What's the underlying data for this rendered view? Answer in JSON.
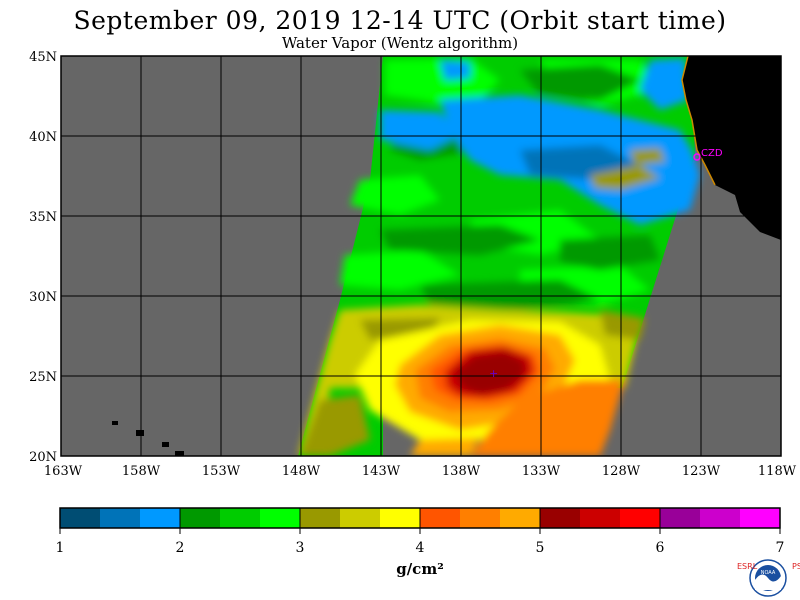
{
  "header": {
    "title": "September 09, 2019  12-14 UTC  (Orbit start time)",
    "subtitle": "Water Vapor (Wentz algorithm)"
  },
  "map": {
    "lat_labels": [
      "45N",
      "40N",
      "35N",
      "30N",
      "25N",
      "20N"
    ],
    "lon_labels": [
      "163W",
      "158W",
      "153W",
      "148W",
      "143W",
      "138W",
      "133W",
      "128W",
      "123W",
      "118W"
    ],
    "station_label": "CZD",
    "colors": {
      "land": "#000000",
      "no_data": "#666666",
      "grid": "#000000",
      "station": "#ff00ff"
    }
  },
  "colorbar": {
    "tick_labels": [
      "1",
      "2",
      "3",
      "4",
      "5",
      "6",
      "7"
    ],
    "unit": "g/cm²",
    "colors": [
      "#004d73",
      "#0073b8",
      "#0099ff",
      "#009900",
      "#00cc00",
      "#00ff00",
      "#999900",
      "#cccc00",
      "#ffff00",
      "#ff5500",
      "#ff7f00",
      "#ffaa00",
      "#990000",
      "#cc0000",
      "#ff0000",
      "#990099",
      "#cc00cc",
      "#ff00ff"
    ]
  },
  "logo": {
    "left_text": "ESRL",
    "right_text": "PSD",
    "icon": "noaa-logo-icon"
  }
}
